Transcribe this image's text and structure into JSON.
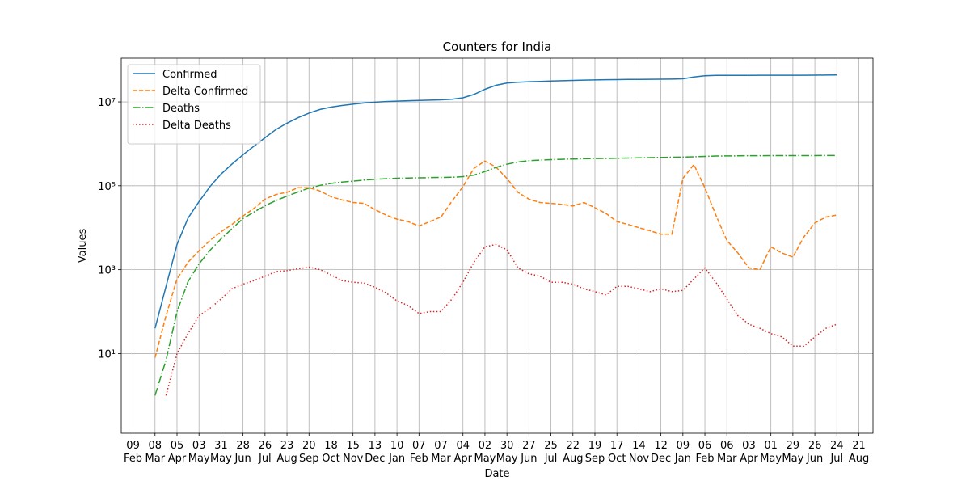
{
  "chart_data": {
    "type": "line",
    "title": "Counters for India",
    "xlabel": "Date",
    "ylabel": "Values",
    "yscale": "log",
    "grid": true,
    "legend": "upper left",
    "xlim": [
      -15,
      942
    ],
    "ylim": [
      0.126,
      110000000
    ],
    "xticks": [
      {
        "value": 0,
        "label": "09 Feb"
      },
      {
        "value": 28,
        "label": "08 Mar"
      },
      {
        "value": 56,
        "label": "05 Apr"
      },
      {
        "value": 84,
        "label": "03 May"
      },
      {
        "value": 112,
        "label": "31 May"
      },
      {
        "value": 140,
        "label": "28 Jun"
      },
      {
        "value": 168,
        "label": "26 Jul"
      },
      {
        "value": 196,
        "label": "23 Aug"
      },
      {
        "value": 224,
        "label": "20 Sep"
      },
      {
        "value": 252,
        "label": "18 Oct"
      },
      {
        "value": 280,
        "label": "15 Nov"
      },
      {
        "value": 308,
        "label": "13 Dec"
      },
      {
        "value": 336,
        "label": "10 Jan"
      },
      {
        "value": 364,
        "label": "07 Feb"
      },
      {
        "value": 392,
        "label": "07 Mar"
      },
      {
        "value": 420,
        "label": "04 Apr"
      },
      {
        "value": 448,
        "label": "02 May"
      },
      {
        "value": 476,
        "label": "30 May"
      },
      {
        "value": 504,
        "label": "27 Jun"
      },
      {
        "value": 532,
        "label": "25 Jul"
      },
      {
        "value": 560,
        "label": "22 Aug"
      },
      {
        "value": 588,
        "label": "19 Sep"
      },
      {
        "value": 616,
        "label": "17 Oct"
      },
      {
        "value": 644,
        "label": "14 Nov"
      },
      {
        "value": 672,
        "label": "12 Dec"
      },
      {
        "value": 700,
        "label": "09 Jan"
      },
      {
        "value": 728,
        "label": "06 Feb"
      },
      {
        "value": 756,
        "label": "06 Mar"
      },
      {
        "value": 784,
        "label": "03 Apr"
      },
      {
        "value": 812,
        "label": "01 May"
      },
      {
        "value": 840,
        "label": "29 May"
      },
      {
        "value": 868,
        "label": "26 Jun"
      },
      {
        "value": 896,
        "label": "24 Jul"
      },
      {
        "value": 924,
        "label": "21 Aug"
      }
    ],
    "yticks": [
      {
        "value": 10,
        "label": "10¹"
      },
      {
        "value": 1000,
        "label": "10³"
      },
      {
        "value": 100000,
        "label": "10⁵"
      },
      {
        "value": 10000000,
        "label": "10⁷"
      }
    ],
    "x": [
      28,
      42,
      56,
      70,
      84,
      98,
      112,
      126,
      140,
      154,
      168,
      182,
      196,
      210,
      224,
      238,
      252,
      266,
      280,
      294,
      308,
      322,
      336,
      350,
      364,
      378,
      392,
      406,
      420,
      434,
      448,
      462,
      476,
      490,
      504,
      518,
      532,
      546,
      560,
      574,
      588,
      602,
      616,
      630,
      644,
      658,
      672,
      686,
      700,
      714,
      728,
      742,
      756,
      770,
      784,
      798,
      812,
      826,
      840,
      854,
      868,
      882,
      896
    ],
    "series": [
      {
        "name": "Confirmed",
        "color": "#1f77b4",
        "linestyle": "-",
        "values": [
          40,
          400,
          4000,
          17000,
          42000,
          96000,
          190000,
          330000,
          550000,
          880000,
          1400000,
          2200000,
          3100000,
          4200000,
          5400000,
          6600000,
          7500000,
          8200000,
          8800000,
          9400000,
          9850000,
          10200000,
          10450000,
          10660000,
          10800000,
          11000000,
          11200000,
          11600000,
          12500000,
          15000000,
          19900000,
          24900000,
          28000000,
          29500000,
          30200000,
          30800000,
          31300000,
          31900000,
          32400000,
          33000000,
          33400000,
          33800000,
          34000000,
          34300000,
          34400000,
          34600000,
          34700000,
          34800000,
          35500000,
          39300000,
          42000000,
          42800000,
          43000000,
          43000000,
          43000000,
          43100000,
          43100000,
          43100000,
          43200000,
          43200000,
          43400000,
          43600000,
          43900000
        ]
      },
      {
        "name": "Delta Confirmed",
        "color": "#ff7f0e",
        "linestyle": "--",
        "values": [
          8,
          80,
          600,
          1500,
          2800,
          5000,
          8000,
          12000,
          19000,
          29000,
          48000,
          62000,
          70000,
          90000,
          90000,
          75000,
          55000,
          46000,
          40000,
          38000,
          27000,
          20000,
          16000,
          14000,
          11000,
          14000,
          18000,
          43000,
          95000,
          260000,
          390000,
          280000,
          150000,
          70000,
          48000,
          40000,
          38000,
          36000,
          33000,
          40000,
          30000,
          22000,
          14000,
          12000,
          10000,
          8500,
          7000,
          7000,
          150000,
          320000,
          90000,
          20000,
          5000,
          2500,
          1100,
          1000,
          3500,
          2500,
          2000,
          6000,
          13000,
          18000,
          20000
        ]
      },
      {
        "name": "Deaths",
        "color": "#2ca02c",
        "linestyle": "-.",
        "values": [
          1,
          7,
          100,
          520,
          1370,
          2900,
          5400,
          9500,
          16500,
          23700,
          33400,
          44400,
          56700,
          71600,
          87900,
          101800,
          114000,
          122100,
          128700,
          136700,
          143000,
          147600,
          151000,
          153600,
          155000,
          156500,
          157900,
          159900,
          165100,
          178800,
          218900,
          274400,
          325900,
          370400,
          396700,
          408000,
          420600,
          427800,
          434400,
          440200,
          445100,
          448600,
          451800,
          458400,
          463700,
          468600,
          475600,
          479700,
          483400,
          489400,
          501100,
          511900,
          515100,
          516300,
          521000,
          521700,
          523800,
          524200,
          524600,
          524700,
          525000,
          525500,
          526000
        ]
      },
      {
        "name": "Delta Deaths",
        "color": "#d62728",
        "linestyle": ":",
        "values": [
          null,
          1,
          10,
          30,
          80,
          120,
          200,
          350,
          450,
          550,
          700,
          900,
          950,
          1050,
          1150,
          1000,
          750,
          550,
          500,
          480,
          380,
          280,
          180,
          140,
          90,
          100,
          100,
          200,
          500,
          1500,
          3500,
          4000,
          3000,
          1100,
          800,
          700,
          500,
          500,
          450,
          350,
          300,
          250,
          400,
          400,
          350,
          300,
          350,
          300,
          320,
          600,
          1100,
          500,
          200,
          80,
          50,
          40,
          30,
          25,
          15,
          15,
          25,
          40,
          50
        ]
      }
    ]
  }
}
